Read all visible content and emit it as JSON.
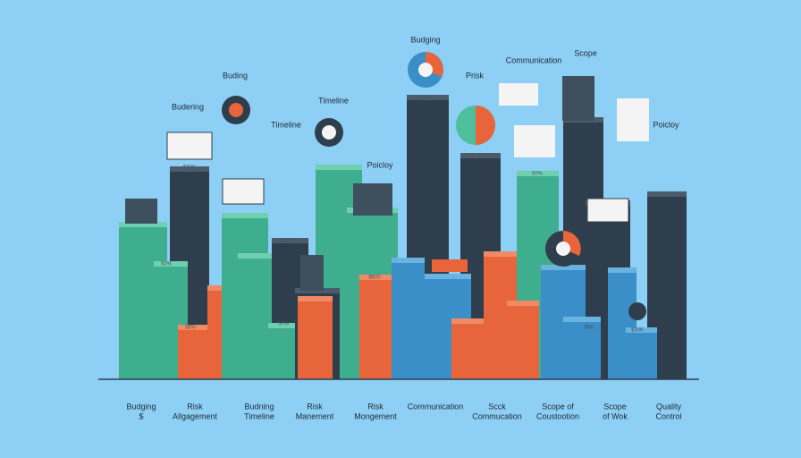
{
  "top_labels": [
    "Budging",
    "Prisk",
    "Communication",
    "Scope",
    "Buding",
    "Budering",
    "Timeline",
    "Timeline",
    "Poicloy",
    "Poicloy"
  ],
  "bottom_labels": [
    [
      "Budging",
      "$"
    ],
    [
      "Risk",
      "Allgagement"
    ],
    [
      "Budning",
      "Timeline"
    ],
    [
      "Risk",
      "Manement"
    ],
    [
      "Risk",
      "Mongement"
    ],
    [
      "Communication"
    ],
    [
      "Scck",
      "Commucation"
    ],
    [
      "Scope of",
      "Coustootion"
    ],
    [
      "Scope",
      "of Wok"
    ],
    [
      "Quality",
      "Control"
    ]
  ],
  "bar_labels": [
    "$60K",
    "50%",
    "36%",
    "$6K",
    "50%",
    "$600",
    "$50%",
    "$60K",
    "50%",
    "$60",
    "$50K"
  ]
}
